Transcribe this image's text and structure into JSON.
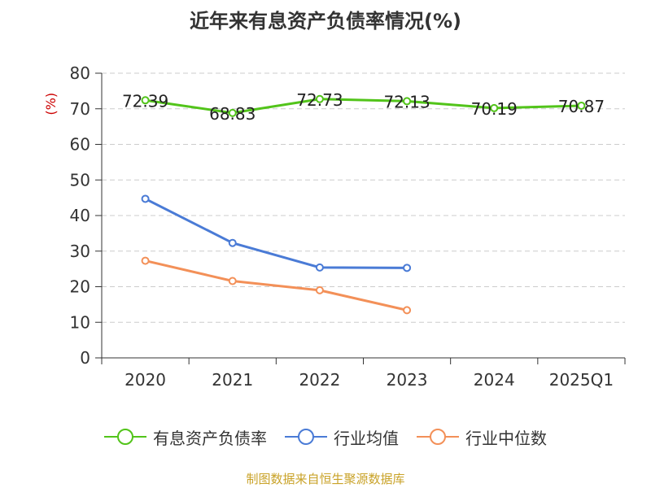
{
  "chart_data": {
    "type": "line",
    "title": "近年来有息资产负债率情况(%)",
    "ylabel": "(%)",
    "categories": [
      "2020",
      "2021",
      "2022",
      "2023",
      "2024",
      "2025Q1"
    ],
    "ylim": [
      0,
      80
    ],
    "yticks": [
      0,
      10,
      20,
      30,
      40,
      50,
      60,
      70,
      80
    ],
    "grid": true,
    "legend_position": "bottom",
    "series": [
      {
        "name": "有息资产负债率",
        "color": "#52c41a",
        "values": [
          72.39,
          68.83,
          72.73,
          72.13,
          70.19,
          70.87
        ],
        "labels": [
          "72.39",
          "68.83",
          "72.73",
          "72.13",
          "70.19",
          "70.87"
        ]
      },
      {
        "name": "行业均值",
        "color": "#4a7bd6",
        "values": [
          44.7,
          32.3,
          25.4,
          25.3,
          null,
          null
        ]
      },
      {
        "name": "行业中位数",
        "color": "#f39058",
        "values": [
          27.3,
          21.6,
          19.0,
          13.4,
          null,
          null
        ]
      }
    ]
  },
  "source": "制图数据来自恒生聚源数据库"
}
